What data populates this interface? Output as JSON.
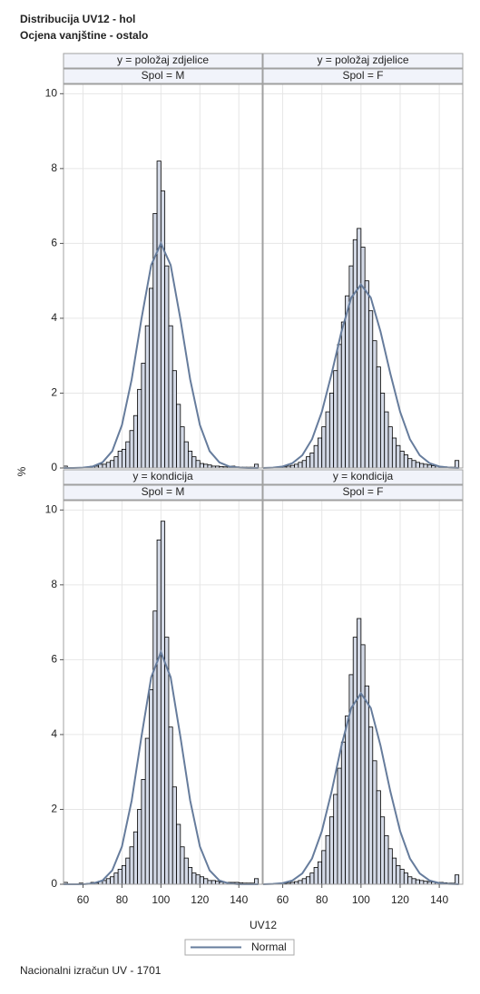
{
  "chart_data": {
    "type": "histogram",
    "title": "Distribucija UV12 - hol",
    "subtitle": "Ocjena vanjštine - ostalo",
    "xlabel": "UV12",
    "ylabel": "%",
    "footnote": "Nacionalni izračun UV - 1701",
    "xlim": [
      50,
      152
    ],
    "ylim": [
      0,
      10.25
    ],
    "xticks": [
      60,
      80,
      100,
      120,
      140
    ],
    "yticks": [
      0,
      2,
      4,
      6,
      8,
      10
    ],
    "grid": true,
    "bar_color": "#d3d9e6",
    "bins": [
      50,
      52,
      54,
      56,
      58,
      60,
      62,
      64,
      66,
      68,
      70,
      72,
      74,
      76,
      78,
      80,
      82,
      84,
      86,
      88,
      90,
      92,
      94,
      96,
      98,
      100,
      102,
      104,
      106,
      108,
      110,
      112,
      114,
      116,
      118,
      120,
      122,
      124,
      126,
      128,
      130,
      132,
      134,
      136,
      138,
      140,
      142,
      144,
      146,
      148,
      150
    ],
    "normal": {
      "name": "Normal",
      "color": "#667c9c",
      "x": [
        50,
        55,
        60,
        65,
        70,
        75,
        80,
        85,
        90,
        95,
        100,
        105,
        110,
        115,
        120,
        125,
        130,
        135,
        140,
        145,
        150
      ]
    },
    "panels": [
      {
        "row_label": "y = položaj zdjelice",
        "col_label": "Spol = M",
        "values": [
          0.05,
          0,
          0,
          0,
          0,
          0,
          0.02,
          0.05,
          0.05,
          0.1,
          0.1,
          0.15,
          0.2,
          0.3,
          0.45,
          0.5,
          0.7,
          1.0,
          1.4,
          2.1,
          2.8,
          3.8,
          4.8,
          6.8,
          8.2,
          7.4,
          5.4,
          3.8,
          2.6,
          1.7,
          1.1,
          0.7,
          0.45,
          0.3,
          0.2,
          0.12,
          0.1,
          0.08,
          0.05,
          0.05,
          0.04,
          0.03,
          0.03,
          0.05,
          0.03,
          0.02,
          0.02,
          0.02,
          0.02,
          0.1
        ],
        "normal_values": [
          0,
          0,
          0.01,
          0.04,
          0.15,
          0.45,
          1.15,
          2.37,
          3.98,
          5.42,
          6,
          5.42,
          3.98,
          2.37,
          1.15,
          0.45,
          0.15,
          0.04,
          0.01,
          0,
          0
        ]
      },
      {
        "row_label": "y = položaj zdjelice",
        "col_label": "Spol = F",
        "values": [
          0,
          0,
          0,
          0,
          0.02,
          0.03,
          0.05,
          0.07,
          0.1,
          0.15,
          0.2,
          0.3,
          0.4,
          0.6,
          0.8,
          1.1,
          1.5,
          2.0,
          2.6,
          3.3,
          3.9,
          4.6,
          5.4,
          6.1,
          6.4,
          5.9,
          5.0,
          4.2,
          3.4,
          2.7,
          2.0,
          1.5,
          1.1,
          0.8,
          0.6,
          0.45,
          0.35,
          0.25,
          0.2,
          0.15,
          0.12,
          0.1,
          0.08,
          0.06,
          0.05,
          0.04,
          0.03,
          0.02,
          0.02,
          0.2
        ],
        "normal_values": [
          0,
          0.01,
          0.04,
          0.13,
          0.34,
          0.77,
          1.5,
          2.52,
          3.64,
          4.55,
          4.9,
          4.55,
          3.64,
          2.52,
          1.5,
          0.77,
          0.34,
          0.13,
          0.04,
          0.01,
          0
        ]
      },
      {
        "row_label": "y = kondicija",
        "col_label": "Spol = M",
        "values": [
          0.05,
          0,
          0,
          0,
          0.03,
          0,
          0.02,
          0.05,
          0.03,
          0.08,
          0.1,
          0.15,
          0.2,
          0.3,
          0.4,
          0.5,
          0.7,
          1.0,
          1.4,
          2.0,
          2.8,
          3.9,
          5.2,
          7.3,
          9.2,
          9.7,
          6.6,
          4.2,
          2.6,
          1.6,
          1.0,
          0.7,
          0.45,
          0.3,
          0.25,
          0.2,
          0.15,
          0.1,
          0.1,
          0.08,
          0.06,
          0.05,
          0.05,
          0.05,
          0.05,
          0.04,
          0.03,
          0.03,
          0.03,
          0.15
        ],
        "normal_values": [
          0,
          0,
          0,
          0.02,
          0.1,
          0.37,
          1.01,
          2.24,
          3.94,
          5.53,
          6.2,
          5.53,
          3.94,
          2.24,
          1.01,
          0.37,
          0.1,
          0.02,
          0,
          0,
          0
        ]
      },
      {
        "row_label": "y = kondicija",
        "col_label": "Spol = F",
        "values": [
          0,
          0,
          0,
          0,
          0,
          0.02,
          0.03,
          0.05,
          0.07,
          0.1,
          0.15,
          0.2,
          0.3,
          0.45,
          0.6,
          0.9,
          1.3,
          1.8,
          2.4,
          3.1,
          3.8,
          4.5,
          5.6,
          6.6,
          7.1,
          6.4,
          5.3,
          4.2,
          3.3,
          2.5,
          1.8,
          1.3,
          0.95,
          0.7,
          0.5,
          0.4,
          0.3,
          0.2,
          0.15,
          0.12,
          0.1,
          0.08,
          0.07,
          0.06,
          0.05,
          0.05,
          0.04,
          0.03,
          0.03,
          0.25
        ],
        "normal_values": [
          0,
          0.01,
          0.03,
          0.1,
          0.29,
          0.69,
          1.42,
          2.48,
          3.7,
          4.71,
          5.1,
          4.71,
          3.7,
          2.48,
          1.42,
          0.69,
          0.29,
          0.1,
          0.03,
          0.01,
          0
        ]
      }
    ]
  }
}
